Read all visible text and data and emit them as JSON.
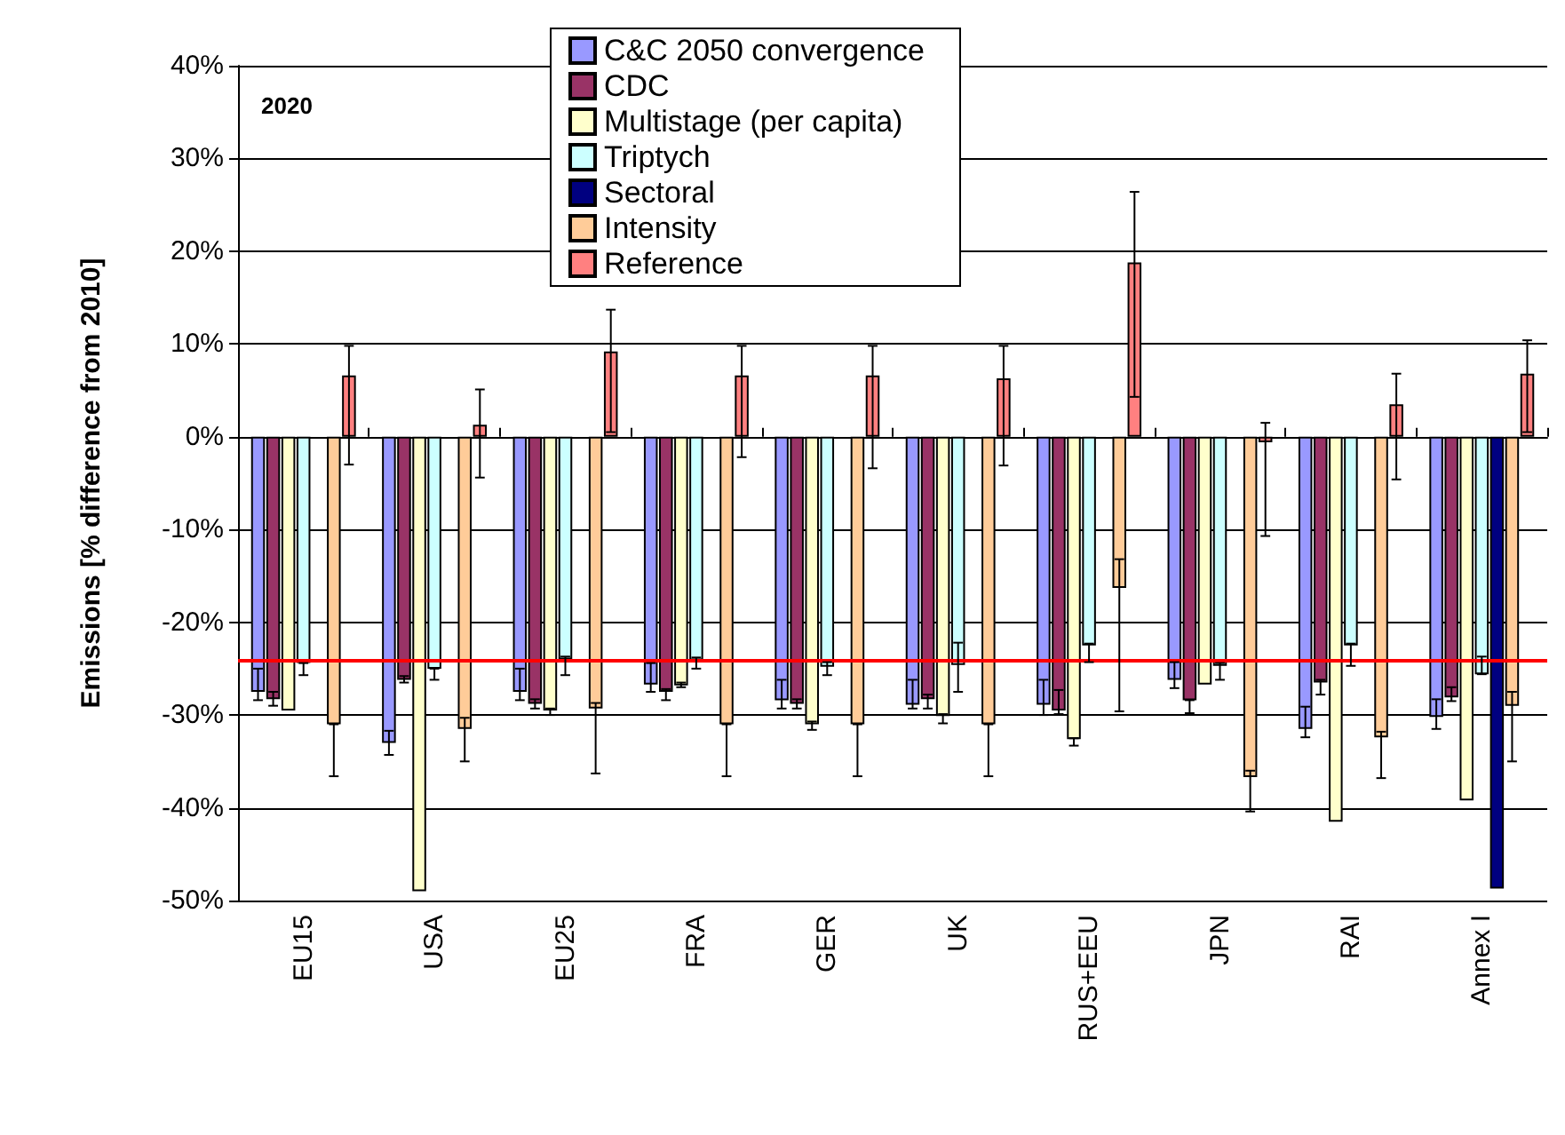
{
  "chart_data": {
    "type": "bar",
    "title": "2020",
    "ylabel": "Emissions [% difference from 2010]",
    "categories": [
      "EU15",
      "USA",
      "EU25",
      "FRA",
      "GER",
      "UK",
      "RUS+EEU",
      "JPN",
      "RAI",
      "Annex I"
    ],
    "ylim": [
      -50,
      40
    ],
    "yticks": [
      {
        "value": -50,
        "label": "-50%"
      },
      {
        "value": -40,
        "label": "-40%"
      },
      {
        "value": -30,
        "label": "-30%"
      },
      {
        "value": -20,
        "label": "-20%"
      },
      {
        "value": -10,
        "label": "-10%"
      },
      {
        "value": 0,
        "label": "0%"
      },
      {
        "value": 10,
        "label": "10%"
      },
      {
        "value": 20,
        "label": "20%"
      },
      {
        "value": 30,
        "label": "30%"
      },
      {
        "value": 40,
        "label": "40%"
      }
    ],
    "grid": "y",
    "legend": "top",
    "series": [
      {
        "name": "C&C 2050 convergence",
        "color": "#9999ff",
        "values": [
          -27.5,
          -33,
          -27.5,
          -26.7,
          -28.4,
          -28.9,
          -28.9,
          -26.2,
          -31.5,
          -30.2
        ],
        "errors": [
          [
            -28.4,
            -25
          ],
          [
            -34.3,
            -31.7
          ],
          [
            -28.4,
            -25
          ],
          [
            -27.5,
            -24.4
          ],
          [
            -29.3,
            -26.2
          ],
          [
            -29.3,
            -26.2
          ],
          [
            -30,
            -26.2
          ],
          [
            -27.1,
            -24.3
          ],
          [
            -32.4,
            -29.1
          ],
          [
            -31.5,
            -28.3
          ]
        ]
      },
      {
        "name": "CDC",
        "color": "#993366",
        "values": [
          -28.3,
          -26.2,
          -28.8,
          -27.5,
          -28.8,
          -28.3,
          -29.5,
          -28.4,
          -26.5,
          -28.1
        ],
        "errors": [
          [
            -29,
            -27.5
          ],
          [
            -26.5,
            -25.8
          ],
          [
            -29.3,
            -28.3
          ],
          [
            -28.4,
            -27.2
          ],
          [
            -29.3,
            -28.3
          ],
          [
            -29.3,
            -27.8
          ],
          [
            -29.9,
            -27.3
          ],
          [
            -29.8,
            -28.4
          ],
          [
            -27.8,
            -26.2
          ],
          [
            -28.5,
            -27
          ]
        ]
      },
      {
        "name": "Multistage (per capita)",
        "color": "#ffffcc",
        "values": [
          -29.5,
          -49,
          -29.5,
          -26.8,
          -31,
          -30.1,
          -32.6,
          -26.7,
          -41.5,
          -39.2
        ],
        "errors": [
          null,
          null,
          [
            -30,
            -29.3
          ],
          [
            -27,
            -26.5
          ],
          [
            -31.6,
            -30.7
          ],
          [
            -30.9,
            -29.9
          ],
          [
            -33.3,
            -32.5
          ],
          null,
          null,
          null
        ]
      },
      {
        "name": "Triptych",
        "color": "#ccffff",
        "values": [
          -24.4,
          -25,
          -24,
          -24.1,
          -24.8,
          -24.6,
          -22.5,
          -24.7,
          -22.5,
          -25.6
        ],
        "errors": [
          [
            -25.7,
            -24.4
          ],
          [
            -26.2,
            -25
          ],
          [
            -25.7,
            -23.7
          ],
          [
            -25,
            -23.8
          ],
          [
            -25.7,
            -24.3
          ],
          [
            -27.5,
            -22.2
          ],
          [
            -24.3,
            -22.3
          ],
          [
            -26.2,
            -24.4
          ],
          [
            -24.7,
            -22.3
          ],
          [
            -25.6,
            -23.7
          ]
        ]
      },
      {
        "name": "Sectoral",
        "color": "#000080",
        "values": [
          null,
          null,
          null,
          null,
          null,
          null,
          null,
          null,
          null,
          -48.7
        ]
      },
      {
        "name": "Intensity",
        "color": "#ffcc99",
        "values": [
          -31,
          -31.5,
          -29.3,
          -31,
          -31,
          -31,
          -16.3,
          -36.7,
          -32.4,
          -29
        ],
        "errors": [
          [
            -36.6,
            -31
          ],
          [
            -35,
            -30.3
          ],
          [
            -36.3,
            -28.7
          ],
          [
            -36.6,
            -31
          ],
          [
            -36.6,
            -31
          ],
          [
            -36.6,
            -31
          ],
          [
            -29.6,
            -13.2
          ],
          [
            -40.4,
            -36
          ],
          [
            -36.8,
            -31.8
          ],
          [
            -35,
            -27.5
          ]
        ]
      },
      {
        "name": "Reference",
        "color": "#ff8080",
        "values": [
          6.6,
          1.3,
          9.2,
          6.6,
          6.6,
          6.3,
          18.8,
          -0.6,
          3.5,
          6.8
        ],
        "errors": [
          [
            -3,
            9.8
          ],
          [
            -4.4,
            5.1
          ],
          [
            0.5,
            13.7
          ],
          [
            -2.2,
            9.8
          ],
          [
            -3.4,
            9.8
          ],
          [
            -3.1,
            9.8
          ],
          [
            4.3,
            26.4
          ],
          [
            -10.7,
            1.5
          ],
          [
            -4.6,
            6.8
          ],
          [
            0.5,
            10.4
          ]
        ]
      }
    ],
    "ref_lines": [
      {
        "axis": "y",
        "value": -24.1,
        "color": "#ff0000"
      }
    ]
  }
}
